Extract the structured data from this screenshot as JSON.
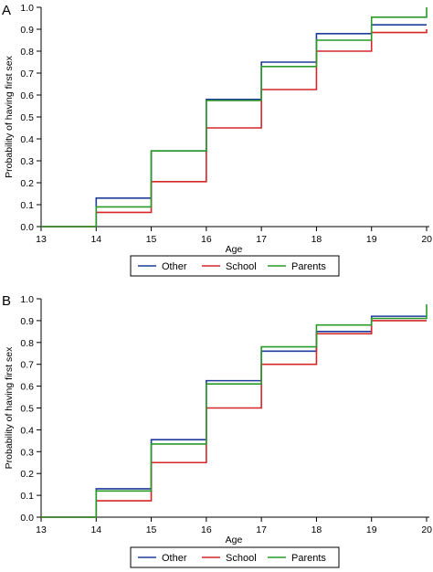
{
  "chart_data": [
    {
      "panel_label": "A",
      "type": "line",
      "step": "post",
      "xlabel": "Age",
      "ylabel": "Probability of having first sex",
      "xlim": [
        13,
        20
      ],
      "ylim": [
        0,
        1
      ],
      "x_ticks": [
        "13",
        "14",
        "15",
        "16",
        "17",
        "18",
        "19",
        "20"
      ],
      "y_ticks": [
        "0.0",
        "0.1",
        "0.2",
        "0.3",
        "0.4",
        "0.5",
        "0.6",
        "0.7",
        "0.8",
        "0.9",
        "1.0"
      ],
      "legend_position": "bottom",
      "series": [
        {
          "name": "Other",
          "color": "#1f3c9c",
          "points": [
            [
              13,
              0
            ],
            [
              14,
              0.13
            ],
            [
              15,
              0.345
            ],
            [
              16,
              0.58
            ],
            [
              17,
              0.75
            ],
            [
              18,
              0.88
            ],
            [
              19,
              0.92
            ],
            [
              20,
              0.92
            ]
          ]
        },
        {
          "name": "School",
          "color": "#d62728",
          "points": [
            [
              13,
              0
            ],
            [
              14,
              0.065
            ],
            [
              15,
              0.205
            ],
            [
              16,
              0.45
            ],
            [
              17,
              0.625
            ],
            [
              18,
              0.8
            ],
            [
              19,
              0.885
            ],
            [
              20,
              0.9
            ]
          ]
        },
        {
          "name": "Parents",
          "color": "#2a9a2a",
          "points": [
            [
              13,
              0
            ],
            [
              14,
              0.09
            ],
            [
              15,
              0.345
            ],
            [
              16,
              0.575
            ],
            [
              17,
              0.73
            ],
            [
              18,
              0.85
            ],
            [
              19,
              0.955
            ],
            [
              20,
              1.0
            ]
          ]
        }
      ]
    },
    {
      "panel_label": "B",
      "type": "line",
      "step": "post",
      "xlabel": "Age",
      "ylabel": "Probability of having first sex",
      "xlim": [
        13,
        20
      ],
      "ylim": [
        0,
        1
      ],
      "x_ticks": [
        "13",
        "14",
        "15",
        "16",
        "17",
        "18",
        "19",
        "20"
      ],
      "y_ticks": [
        "0.0",
        "0.1",
        "0.2",
        "0.3",
        "0.4",
        "0.5",
        "0.6",
        "0.7",
        "0.8",
        "0.9",
        "1.0"
      ],
      "legend_position": "bottom",
      "series": [
        {
          "name": "Other",
          "color": "#1f3c9c",
          "points": [
            [
              13,
              0
            ],
            [
              14,
              0.13
            ],
            [
              15,
              0.355
            ],
            [
              16,
              0.625
            ],
            [
              17,
              0.76
            ],
            [
              18,
              0.85
            ],
            [
              19,
              0.92
            ],
            [
              20,
              0.92
            ]
          ]
        },
        {
          "name": "School",
          "color": "#d62728",
          "points": [
            [
              13,
              0
            ],
            [
              14,
              0.075
            ],
            [
              15,
              0.25
            ],
            [
              16,
              0.5
            ],
            [
              17,
              0.7
            ],
            [
              18,
              0.84
            ],
            [
              19,
              0.9
            ],
            [
              20,
              0.9
            ]
          ]
        },
        {
          "name": "Parents",
          "color": "#2a9a2a",
          "points": [
            [
              13,
              0
            ],
            [
              14,
              0.12
            ],
            [
              15,
              0.335
            ],
            [
              16,
              0.61
            ],
            [
              17,
              0.78
            ],
            [
              18,
              0.88
            ],
            [
              19,
              0.91
            ],
            [
              20,
              0.975
            ]
          ]
        }
      ]
    }
  ]
}
